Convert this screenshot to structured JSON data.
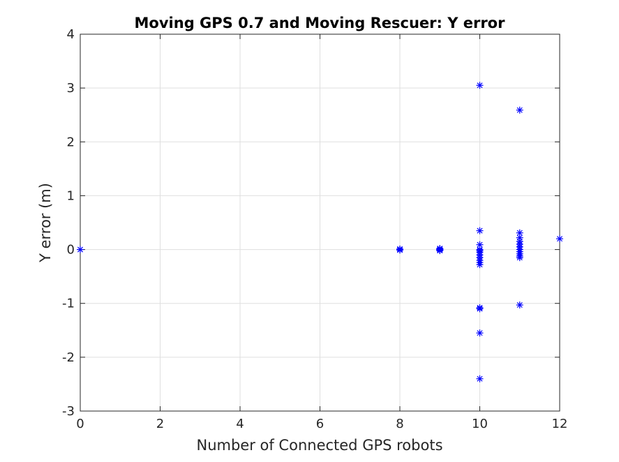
{
  "chart_data": {
    "type": "scatter",
    "title": "Moving GPS 0.7 and Moving Rescuer: Y error",
    "xlabel": "Number of Connected GPS robots",
    "ylabel": "Y error (m)",
    "xlim": [
      0,
      12
    ],
    "ylim": [
      -3,
      4
    ],
    "xticks": [
      "0",
      "2",
      "4",
      "6",
      "8",
      "10",
      "12"
    ],
    "yticks": [
      "-3",
      "-2",
      "-1",
      "0",
      "1",
      "2",
      "3",
      "4"
    ],
    "grid": true,
    "marker": "asterisk",
    "color": "#0000ff",
    "points": [
      [
        0,
        0
      ],
      [
        8,
        0
      ],
      [
        8,
        -0.01
      ],
      [
        8,
        0.01
      ],
      [
        9,
        0.01
      ],
      [
        9,
        -0.01
      ],
      [
        9,
        0.02
      ],
      [
        9,
        -0.02
      ],
      [
        9,
        0
      ],
      [
        10,
        3.05
      ],
      [
        10,
        0.35
      ],
      [
        10,
        0.09
      ],
      [
        10,
        0.0
      ],
      [
        10,
        -0.02
      ],
      [
        10,
        -0.05
      ],
      [
        10,
        -0.1
      ],
      [
        10,
        -0.15
      ],
      [
        10,
        -0.2
      ],
      [
        10,
        -0.24
      ],
      [
        10,
        -0.28
      ],
      [
        10,
        -1.1
      ],
      [
        10,
        -1.08
      ],
      [
        10,
        -1.55
      ],
      [
        10,
        -2.4
      ],
      [
        11,
        2.59
      ],
      [
        11,
        0.31
      ],
      [
        11,
        0.22
      ],
      [
        11,
        0.15
      ],
      [
        11,
        0.1
      ],
      [
        11,
        0.05
      ],
      [
        11,
        0.0
      ],
      [
        11,
        -0.04
      ],
      [
        11,
        -0.08
      ],
      [
        11,
        -0.12
      ],
      [
        11,
        -0.15
      ],
      [
        11,
        -1.03
      ],
      [
        12,
        0.2
      ]
    ]
  }
}
